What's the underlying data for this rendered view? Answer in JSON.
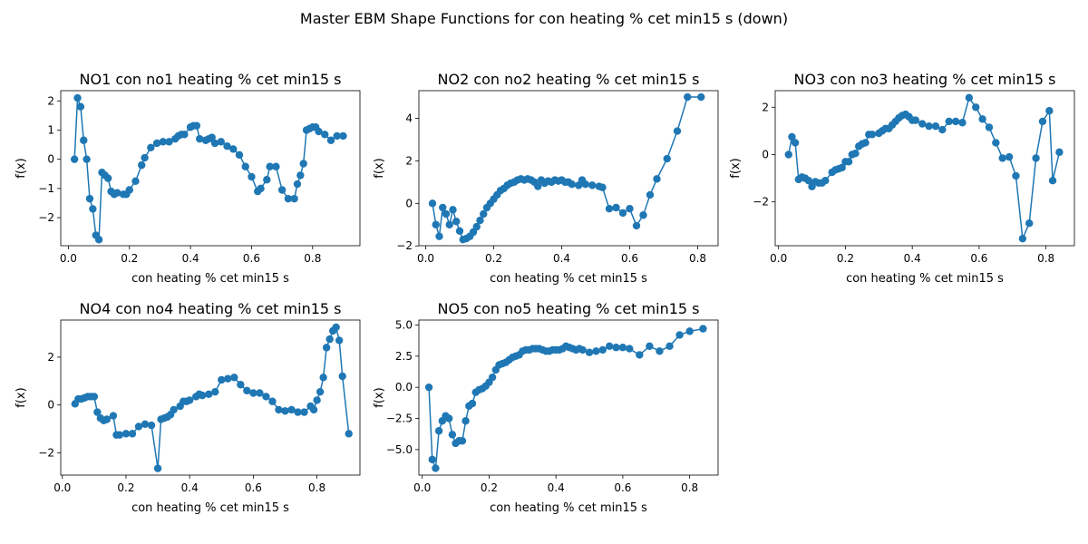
{
  "figure": {
    "suptitle": "Master EBM Shape Functions for con  heating % cet min15 s (down)",
    "line_color": "#1f77b4"
  },
  "chart_data": [
    {
      "type": "line",
      "title": "NO1 con no1 heating % cet min15 s",
      "xlabel": "con  heating % cet min15 s",
      "ylabel": "f(x)",
      "xticks": [
        0.0,
        0.2,
        0.4,
        0.6,
        0.8
      ],
      "yticks": [
        -2,
        -1,
        0,
        1,
        2
      ],
      "xlim": [
        -0.025,
        0.955
      ],
      "ylim": [
        -2.96,
        2.35
      ],
      "series": [
        {
          "x": [
            0.02,
            0.03,
            0.04,
            0.05,
            0.06,
            0.07,
            0.08,
            0.09,
            0.1,
            0.11,
            0.12,
            0.13,
            0.14,
            0.15,
            0.16,
            0.18,
            0.19,
            0.2,
            0.22,
            0.24,
            0.25,
            0.27,
            0.29,
            0.31,
            0.33,
            0.35,
            0.36,
            0.37,
            0.38,
            0.4,
            0.41,
            0.42,
            0.43,
            0.45,
            0.46,
            0.47,
            0.48,
            0.5,
            0.52,
            0.54,
            0.56,
            0.58,
            0.6,
            0.62,
            0.63,
            0.65,
            0.66,
            0.68,
            0.7,
            0.72,
            0.74,
            0.75,
            0.76,
            0.77,
            0.78,
            0.79,
            0.8,
            0.81,
            0.82,
            0.84,
            0.86,
            0.88,
            0.9
          ],
          "y": [
            0.0,
            2.1,
            1.8,
            0.65,
            0.0,
            -1.35,
            -1.7,
            -2.6,
            -2.75,
            -0.45,
            -0.55,
            -0.65,
            -1.1,
            -1.2,
            -1.15,
            -1.2,
            -1.2,
            -1.05,
            -0.75,
            -0.2,
            0.05,
            0.4,
            0.55,
            0.6,
            0.6,
            0.7,
            0.8,
            0.85,
            0.85,
            1.1,
            1.15,
            1.15,
            0.7,
            0.65,
            0.7,
            0.75,
            0.55,
            0.6,
            0.45,
            0.35,
            0.15,
            -0.25,
            -0.6,
            -1.1,
            -1.0,
            -0.7,
            -0.25,
            -0.25,
            -1.05,
            -1.35,
            -1.35,
            -0.85,
            -0.55,
            -0.15,
            1.0,
            1.05,
            1.1,
            1.1,
            0.95,
            0.85,
            0.65,
            0.8,
            0.8
          ]
        }
      ]
    },
    {
      "type": "line",
      "title": "NO2 con no2 heating % cet min15 s",
      "xlabel": "con  heating % cet min15 s",
      "ylabel": "f(x)",
      "xticks": [
        0.0,
        0.2,
        0.4,
        0.6,
        0.8
      ],
      "yticks": [
        -2,
        0,
        2,
        4
      ],
      "xlim": [
        -0.02,
        0.86
      ],
      "ylim": [
        -1.99,
        5.3
      ],
      "series": [
        {
          "x": [
            0.02,
            0.03,
            0.04,
            0.05,
            0.06,
            0.07,
            0.08,
            0.09,
            0.1,
            0.11,
            0.12,
            0.13,
            0.14,
            0.15,
            0.16,
            0.17,
            0.18,
            0.19,
            0.2,
            0.21,
            0.22,
            0.23,
            0.24,
            0.25,
            0.26,
            0.27,
            0.28,
            0.29,
            0.3,
            0.31,
            0.32,
            0.33,
            0.34,
            0.35,
            0.36,
            0.37,
            0.38,
            0.39,
            0.4,
            0.41,
            0.42,
            0.43,
            0.45,
            0.46,
            0.47,
            0.49,
            0.51,
            0.52,
            0.54,
            0.56,
            0.58,
            0.6,
            0.62,
            0.64,
            0.66,
            0.68,
            0.71,
            0.74,
            0.77,
            0.81
          ],
          "y": [
            0.0,
            -1.0,
            -1.55,
            -0.2,
            -0.5,
            -1.0,
            -0.3,
            -0.85,
            -1.3,
            -1.7,
            -1.65,
            -1.55,
            -1.35,
            -1.1,
            -0.8,
            -0.5,
            -0.2,
            0.0,
            0.2,
            0.4,
            0.6,
            0.7,
            0.85,
            0.95,
            1.0,
            1.1,
            1.15,
            1.1,
            1.15,
            1.1,
            1.0,
            0.8,
            1.1,
            0.95,
            1.05,
            1.0,
            1.1,
            1.05,
            1.1,
            1.0,
            1.0,
            0.9,
            0.85,
            1.1,
            0.9,
            0.85,
            0.8,
            0.75,
            -0.25,
            -0.2,
            -0.45,
            -0.25,
            -1.05,
            -0.55,
            0.4,
            1.15,
            2.1,
            3.4,
            5.0,
            5.0
          ]
        }
      ]
    },
    {
      "type": "line",
      "title": "NO3 con no3 heating % cet min15 s",
      "xlabel": "con  heating % cet min15 s",
      "ylabel": "f(x)",
      "xticks": [
        0.0,
        0.2,
        0.4,
        0.6,
        0.8
      ],
      "yticks": [
        -2,
        0,
        2
      ],
      "xlim": [
        -0.01,
        0.885
      ],
      "ylim": [
        -3.85,
        2.7
      ],
      "series": [
        {
          "x": [
            0.03,
            0.04,
            0.05,
            0.06,
            0.07,
            0.08,
            0.09,
            0.1,
            0.11,
            0.12,
            0.13,
            0.14,
            0.16,
            0.17,
            0.18,
            0.19,
            0.2,
            0.21,
            0.22,
            0.23,
            0.24,
            0.25,
            0.26,
            0.27,
            0.28,
            0.3,
            0.31,
            0.32,
            0.33,
            0.34,
            0.35,
            0.36,
            0.37,
            0.38,
            0.39,
            0.4,
            0.41,
            0.43,
            0.45,
            0.47,
            0.49,
            0.51,
            0.53,
            0.55,
            0.57,
            0.59,
            0.61,
            0.63,
            0.65,
            0.67,
            0.69,
            0.71,
            0.73,
            0.75,
            0.77,
            0.79,
            0.81,
            0.82,
            0.84
          ],
          "y": [
            0.0,
            0.75,
            0.5,
            -1.05,
            -0.95,
            -1.0,
            -1.1,
            -1.35,
            -1.15,
            -1.2,
            -1.2,
            -1.1,
            -0.75,
            -0.65,
            -0.6,
            -0.55,
            -0.3,
            -0.3,
            0.0,
            0.05,
            0.35,
            0.45,
            0.5,
            0.85,
            0.85,
            0.9,
            1.0,
            1.1,
            1.1,
            1.25,
            1.4,
            1.55,
            1.65,
            1.7,
            1.6,
            1.45,
            1.45,
            1.3,
            1.2,
            1.2,
            1.05,
            1.4,
            1.4,
            1.35,
            2.4,
            2.0,
            1.5,
            1.15,
            0.5,
            -0.15,
            -0.1,
            -0.9,
            -3.55,
            -2.9,
            -0.15,
            1.4,
            1.85,
            -1.1,
            0.1
          ]
        }
      ]
    },
    {
      "type": "line",
      "title": "NO4 con no4 heating % cet min15 s",
      "xlabel": "con  heating % cet min15 s",
      "ylabel": "f(x)",
      "xticks": [
        0.0,
        0.2,
        0.4,
        0.6,
        0.8
      ],
      "yticks": [
        -2,
        0,
        2
      ],
      "xlim": [
        -0.005,
        0.935
      ],
      "ylim": [
        -2.93,
        3.55
      ],
      "series": [
        {
          "x": [
            0.04,
            0.05,
            0.06,
            0.07,
            0.08,
            0.09,
            0.1,
            0.11,
            0.12,
            0.13,
            0.14,
            0.16,
            0.17,
            0.18,
            0.2,
            0.22,
            0.24,
            0.26,
            0.28,
            0.3,
            0.31,
            0.32,
            0.33,
            0.34,
            0.35,
            0.37,
            0.38,
            0.39,
            0.4,
            0.42,
            0.43,
            0.44,
            0.46,
            0.48,
            0.5,
            0.52,
            0.54,
            0.56,
            0.58,
            0.6,
            0.62,
            0.64,
            0.66,
            0.68,
            0.7,
            0.72,
            0.74,
            0.76,
            0.78,
            0.79,
            0.8,
            0.81,
            0.82,
            0.83,
            0.84,
            0.85,
            0.86,
            0.87,
            0.88,
            0.9
          ],
          "y": [
            0.05,
            0.25,
            0.25,
            0.3,
            0.35,
            0.35,
            0.35,
            -0.3,
            -0.55,
            -0.65,
            -0.6,
            -0.45,
            -1.25,
            -1.25,
            -1.2,
            -1.2,
            -0.9,
            -0.8,
            -0.85,
            -2.65,
            -0.6,
            -0.55,
            -0.5,
            -0.4,
            -0.2,
            -0.05,
            0.15,
            0.15,
            0.2,
            0.35,
            0.45,
            0.4,
            0.45,
            0.55,
            1.05,
            1.1,
            1.15,
            0.85,
            0.6,
            0.5,
            0.5,
            0.35,
            0.15,
            -0.2,
            -0.25,
            -0.2,
            -0.3,
            -0.3,
            -0.05,
            -0.2,
            0.2,
            0.55,
            1.15,
            2.4,
            2.75,
            3.1,
            3.25,
            2.7,
            1.2,
            -1.2
          ]
        }
      ]
    },
    {
      "type": "line",
      "title": "NO5 con no5 heating % cet min15 s",
      "xlabel": "con  heating % cet min15 s",
      "ylabel": "f(x)",
      "xticks": [
        0.0,
        0.2,
        0.4,
        0.6,
        0.8
      ],
      "yticks": [
        -5.0,
        -2.5,
        0.0,
        2.5,
        5.0
      ],
      "xlim": [
        -0.01,
        0.885
      ],
      "ylim": [
        -7.05,
        5.4
      ],
      "series": [
        {
          "x": [
            0.02,
            0.03,
            0.04,
            0.05,
            0.06,
            0.07,
            0.08,
            0.09,
            0.1,
            0.11,
            0.12,
            0.13,
            0.14,
            0.15,
            0.16,
            0.17,
            0.18,
            0.19,
            0.2,
            0.21,
            0.22,
            0.23,
            0.24,
            0.25,
            0.26,
            0.27,
            0.28,
            0.29,
            0.3,
            0.31,
            0.32,
            0.33,
            0.34,
            0.35,
            0.36,
            0.37,
            0.38,
            0.39,
            0.4,
            0.41,
            0.42,
            0.43,
            0.44,
            0.45,
            0.46,
            0.47,
            0.48,
            0.5,
            0.52,
            0.54,
            0.56,
            0.58,
            0.6,
            0.62,
            0.65,
            0.68,
            0.71,
            0.74,
            0.77,
            0.8,
            0.84
          ],
          "y": [
            0.0,
            -5.8,
            -6.5,
            -3.5,
            -2.7,
            -2.3,
            -2.5,
            -3.8,
            -4.5,
            -4.3,
            -4.3,
            -2.7,
            -1.5,
            -1.3,
            -0.4,
            -0.2,
            -0.1,
            0.1,
            0.4,
            0.8,
            1.4,
            1.8,
            1.9,
            2.0,
            2.2,
            2.4,
            2.5,
            2.6,
            2.9,
            3.0,
            3.0,
            3.1,
            3.1,
            3.1,
            3.0,
            2.9,
            2.9,
            3.0,
            3.0,
            3.0,
            3.1,
            3.3,
            3.2,
            3.1,
            3.0,
            3.1,
            3.0,
            2.8,
            2.9,
            3.0,
            3.3,
            3.2,
            3.2,
            3.1,
            2.6,
            3.3,
            2.9,
            3.3,
            4.2,
            4.5,
            4.7
          ]
        }
      ]
    }
  ]
}
